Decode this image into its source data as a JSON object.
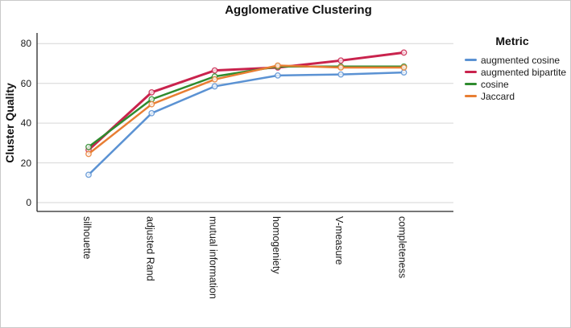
{
  "chart_data": {
    "type": "line",
    "title": "Agglomerative Clustering",
    "xlabel": "",
    "ylabel": "Cluster Quality",
    "categories": [
      "silhouette",
      "adjusted Rand",
      "mutual information",
      "homogeniety",
      "V-measure",
      "completeness"
    ],
    "series": [
      {
        "name": "augmented cosine",
        "color": "#5B92D3",
        "values": [
          14,
          45,
          58.5,
          64,
          64.5,
          65.5
        ]
      },
      {
        "name": "augmented bipartite",
        "color": "#C9234D",
        "values": [
          26.5,
          55.5,
          66.5,
          68,
          71.5,
          75.5
        ]
      },
      {
        "name": "cosine",
        "color": "#2E8B2E",
        "values": [
          28,
          52,
          63.5,
          68.5,
          68.5,
          68.5
        ]
      },
      {
        "name": "Jaccard",
        "color": "#E87E33",
        "values": [
          24.5,
          49.5,
          62,
          69,
          68,
          68
        ]
      }
    ],
    "ylim": [
      0,
      80
    ],
    "yticks": [
      0,
      20,
      40,
      60,
      80
    ],
    "grid": true,
    "legend_title": "Metric",
    "legend_position": "right",
    "marker": "open-circle",
    "gridline_color": "#d6d6d6",
    "axis_color": "#262626"
  }
}
